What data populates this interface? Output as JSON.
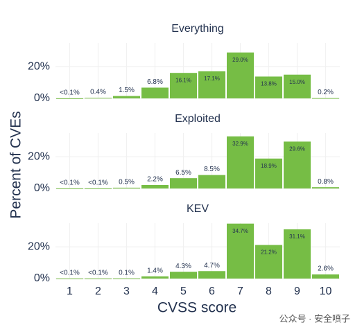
{
  "shared": {
    "x_label": "CVSS score",
    "y_label": "Percent of CVEs",
    "categories": [
      "1",
      "2",
      "3",
      "4",
      "5",
      "6",
      "7",
      "8",
      "9",
      "10"
    ],
    "watermark": "公众号 · 安全喷子"
  },
  "chart_data": [
    {
      "type": "bar",
      "title": "Everything",
      "color": "#76bd45",
      "ylim": [
        0,
        35
      ],
      "yticks": [
        {
          "value": 0,
          "label": "0%"
        },
        {
          "value": 20,
          "label": "20%"
        }
      ],
      "grid": true,
      "values": [
        0.05,
        0.4,
        1.5,
        6.8,
        16.1,
        17.1,
        29.0,
        13.8,
        15.0,
        0.2
      ],
      "value_labels": [
        "<0.1%",
        "0.4%",
        "1.5%",
        "6.8%",
        "16.1%",
        "17.1%",
        "29.0%",
        "13.8%",
        "15.0%",
        "0.2%"
      ]
    },
    {
      "type": "bar",
      "title": "Exploited",
      "color": "#76bd45",
      "ylim": [
        0,
        35
      ],
      "yticks": [
        {
          "value": 0,
          "label": "0%"
        },
        {
          "value": 20,
          "label": "20%"
        }
      ],
      "grid": true,
      "values": [
        0.05,
        0.05,
        0.5,
        2.2,
        6.5,
        8.5,
        32.9,
        18.9,
        29.6,
        0.8
      ],
      "value_labels": [
        "<0.1%",
        "<0.1%",
        "0.5%",
        "2.2%",
        "6.5%",
        "8.5%",
        "32.9%",
        "18.9%",
        "29.6%",
        "0.8%"
      ]
    },
    {
      "type": "bar",
      "title": "KEV",
      "color": "#76bd45",
      "ylim": [
        0,
        35
      ],
      "yticks": [
        {
          "value": 0,
          "label": "0%"
        },
        {
          "value": 20,
          "label": "20%"
        }
      ],
      "grid": true,
      "values": [
        0.05,
        0.05,
        0.1,
        1.4,
        4.3,
        4.7,
        34.7,
        21.2,
        31.1,
        2.6
      ],
      "value_labels": [
        "<0.1%",
        "<0.1%",
        "0.1%",
        "1.4%",
        "4.3%",
        "4.7%",
        "34.7%",
        "21.2%",
        "31.1%",
        "2.6%"
      ]
    }
  ]
}
